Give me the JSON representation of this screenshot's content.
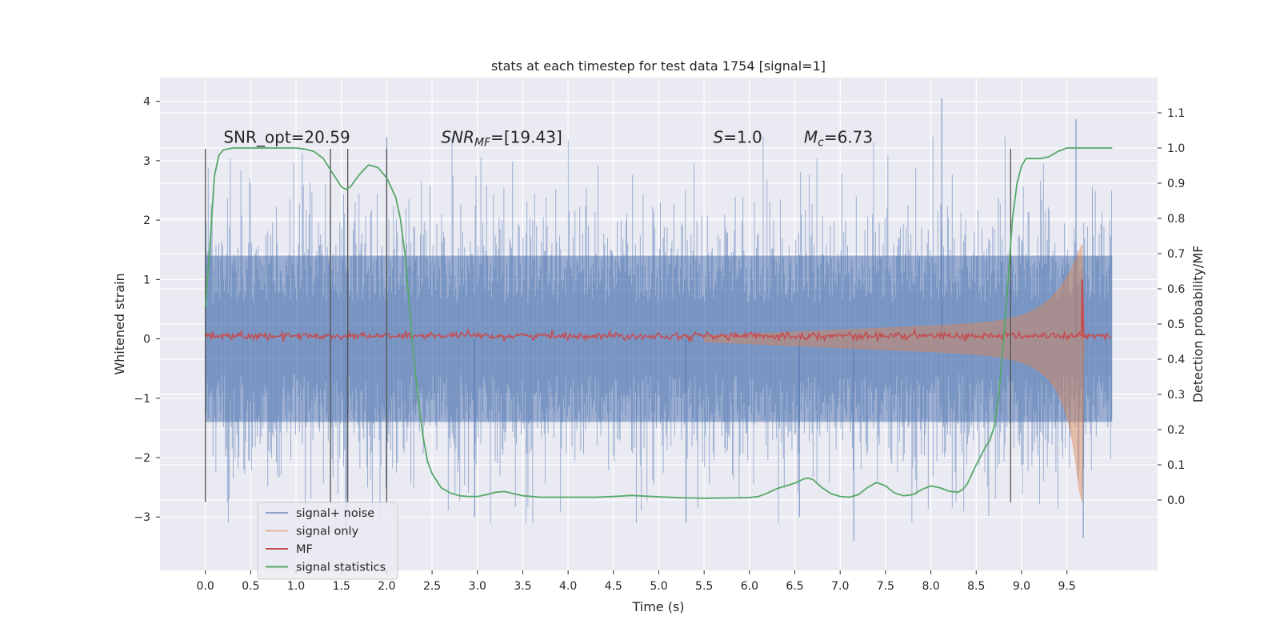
{
  "chart_data": {
    "type": "line",
    "title": "stats at each timestep for test data 1754 [signal=1]",
    "xlabel": "Time (s)",
    "ylabel_left": "Whitened strain",
    "ylabel_right": "Detection probability/MF",
    "xlim": [
      -0.5,
      10.5
    ],
    "ylim_left": [
      -3.9,
      4.4
    ],
    "ylim_right": [
      -0.2,
      1.2
    ],
    "x_ticks": [
      0.0,
      0.5,
      1.0,
      1.5,
      2.0,
      2.5,
      3.0,
      3.5,
      4.0,
      4.5,
      5.0,
      5.5,
      6.0,
      6.5,
      7.0,
      7.5,
      8.0,
      8.5,
      9.0,
      9.5
    ],
    "x_tick_labels": [
      "0.0",
      "0.5",
      "1.0",
      "1.5",
      "2.0",
      "2.5",
      "3.0",
      "3.5",
      "4.0",
      "4.5",
      "5.0",
      "5.5",
      "6.0",
      "6.5",
      "7.0",
      "7.5",
      "8.0",
      "8.5",
      "9.0",
      "9.5"
    ],
    "y_left_ticks": [
      -3,
      -2,
      -1,
      0,
      1,
      2,
      3,
      4
    ],
    "y_left_tick_labels": [
      "−3",
      "−2",
      "−1",
      "0",
      "1",
      "2",
      "3",
      "4"
    ],
    "y_right_ticks": [
      0.0,
      0.1,
      0.2,
      0.3,
      0.4,
      0.5,
      0.6,
      0.7,
      0.8,
      0.9,
      1.0,
      1.1
    ],
    "y_right_tick_labels": [
      "0.0",
      "0.1",
      "0.2",
      "0.3",
      "0.4",
      "0.5",
      "0.6",
      "0.7",
      "0.8",
      "0.9",
      "1.0",
      "1.1"
    ],
    "grid": true,
    "legend_position": "bottom-left",
    "series": [
      {
        "name": "signal+ noise",
        "axis": "left",
        "color": "#4c72b0",
        "style": "noise-band",
        "x_range": [
          0.0,
          10.0
        ],
        "dense_amplitude": 1.4,
        "peak_amplitude_range": [
          -3.35,
          4.05
        ]
      },
      {
        "name": "signal only",
        "axis": "left",
        "color": "#dd8452",
        "style": "chirp",
        "start": 5.5,
        "merger": 9.67,
        "end_amplitude": [
          -2.75,
          1.6
        ]
      },
      {
        "name": "MF",
        "axis": "left",
        "color": "#c44e52",
        "style": "line",
        "baseline": 0.05,
        "x_range": [
          0.0,
          10.0
        ],
        "peak": {
          "x": 9.67,
          "y": 1.0
        }
      },
      {
        "name": "signal statistics",
        "axis": "right",
        "color": "#55a868",
        "style": "line",
        "x": [
          0.0,
          0.05,
          0.1,
          0.15,
          0.2,
          0.3,
          0.5,
          0.8,
          1.0,
          1.1,
          1.2,
          1.3,
          1.4,
          1.5,
          1.55,
          1.6,
          1.7,
          1.8,
          1.9,
          2.0,
          2.1,
          2.15,
          2.2,
          2.25,
          2.3,
          2.35,
          2.4,
          2.45,
          2.5,
          2.6,
          2.7,
          2.8,
          2.9,
          3.0,
          3.1,
          3.2,
          3.3,
          3.4,
          3.5,
          3.7,
          4.0,
          4.3,
          4.5,
          4.7,
          5.0,
          5.3,
          5.5,
          5.8,
          6.0,
          6.1,
          6.2,
          6.3,
          6.4,
          6.5,
          6.6,
          6.65,
          6.7,
          6.8,
          6.9,
          7.0,
          7.1,
          7.2,
          7.3,
          7.4,
          7.5,
          7.6,
          7.7,
          7.8,
          7.9,
          8.0,
          8.1,
          8.2,
          8.3,
          8.35,
          8.4,
          8.5,
          8.6,
          8.65,
          8.7,
          8.75,
          8.8,
          8.85,
          8.9,
          8.95,
          9.0,
          9.05,
          9.1,
          9.2,
          9.3,
          9.4,
          9.5,
          9.6,
          9.7,
          9.8,
          9.9,
          10.0
        ],
        "y": [
          0.55,
          0.72,
          0.92,
          0.98,
          0.995,
          1.0,
          1.0,
          1.0,
          1.0,
          0.997,
          0.99,
          0.97,
          0.93,
          0.89,
          0.882,
          0.89,
          0.925,
          0.952,
          0.945,
          0.915,
          0.86,
          0.8,
          0.7,
          0.55,
          0.4,
          0.28,
          0.18,
          0.11,
          0.075,
          0.035,
          0.02,
          0.012,
          0.01,
          0.01,
          0.015,
          0.022,
          0.024,
          0.018,
          0.012,
          0.008,
          0.008,
          0.008,
          0.01,
          0.013,
          0.009,
          0.006,
          0.005,
          0.006,
          0.007,
          0.01,
          0.02,
          0.032,
          0.04,
          0.048,
          0.06,
          0.062,
          0.058,
          0.035,
          0.018,
          0.01,
          0.008,
          0.015,
          0.035,
          0.05,
          0.04,
          0.02,
          0.012,
          0.015,
          0.03,
          0.04,
          0.035,
          0.025,
          0.022,
          0.03,
          0.045,
          0.1,
          0.15,
          0.17,
          0.21,
          0.3,
          0.45,
          0.62,
          0.8,
          0.9,
          0.95,
          0.97,
          0.97,
          0.97,
          0.975,
          0.99,
          1.0,
          1.0,
          1.0,
          1.0,
          1.0,
          1.0
        ]
      }
    ],
    "vertical_lines": [
      0.0,
      1.38,
      1.57,
      2.0,
      8.88
    ],
    "vertical_line_range_left": [
      -2.75,
      3.2
    ],
    "annotations": [
      {
        "id": "snr-opt",
        "text": "SNR_opt=20.59",
        "x": 0.2,
        "y": 3.3
      },
      {
        "id": "snr-mf",
        "text_main": "SNR",
        "text_sub": "MF",
        "text_rest": "=[19.43]",
        "x": 2.6,
        "y": 3.3
      },
      {
        "id": "s-value",
        "text_main": "S",
        "text_rest": "=1.0",
        "x": 5.6,
        "y": 3.3
      },
      {
        "id": "mc-value",
        "text_main": "M",
        "text_sub": "c",
        "text_rest": "=6.73",
        "x": 6.6,
        "y": 3.3
      }
    ],
    "legend": [
      {
        "label": "signal+ noise",
        "color": "#4c72b0"
      },
      {
        "label": "signal only",
        "color": "#dd8452"
      },
      {
        "label": "MF",
        "color": "#c44e52"
      },
      {
        "label": "signal statistics",
        "color": "#55a868"
      }
    ]
  }
}
